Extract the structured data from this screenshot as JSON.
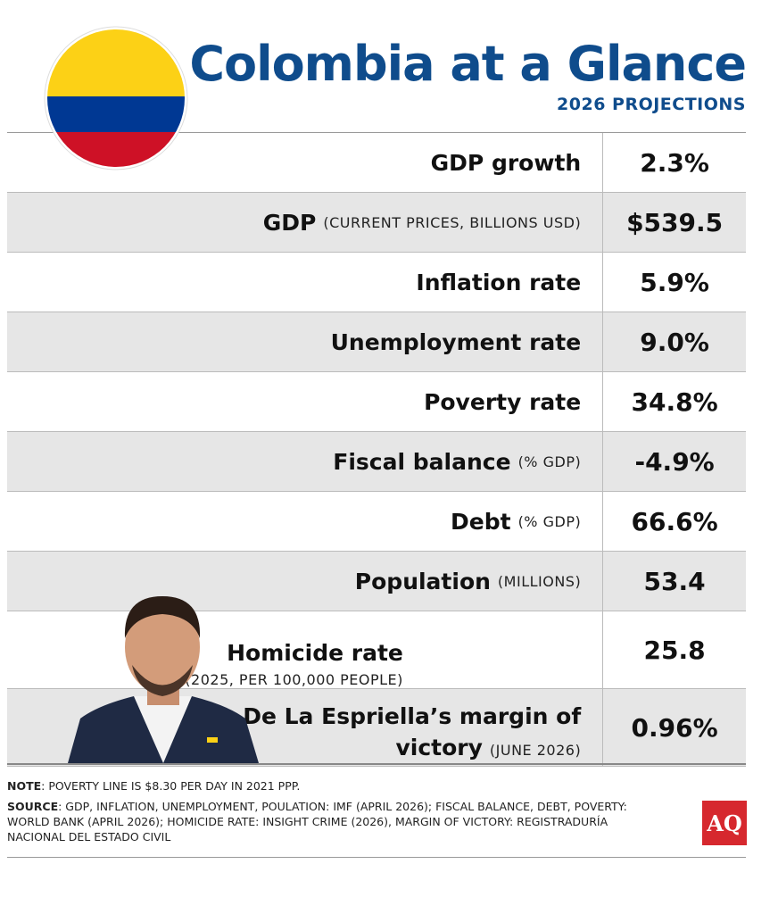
{
  "header": {
    "title": "Colombia at a Glance",
    "subtitle": "2026 PROJECTIONS"
  },
  "table": {
    "rows": [
      {
        "label": "GDP growth",
        "value": "2.3%"
      },
      {
        "label": "GDP",
        "qualifier": "(CURRENT PRICES, BILLIONS USD)",
        "value": "$539.5"
      },
      {
        "label": "Inflation rate",
        "value": "5.9%"
      },
      {
        "label": "Unemployment rate",
        "value": "9.0%"
      },
      {
        "label": "Poverty rate",
        "value": "34.8%"
      },
      {
        "label": "Fiscal balance",
        "qualifier": "(% GDP)",
        "value": "-4.9%"
      },
      {
        "label": "Debt",
        "qualifier": "(% GDP)",
        "value": "66.6%"
      },
      {
        "label": "Population",
        "qualifier": "(MILLIONS)",
        "value": "53.4"
      },
      {
        "label": "Homicide rate",
        "qualifier": "(2025, PER 100,000 PEOPLE)",
        "value": "25.8"
      },
      {
        "label": "Abelardo De La Espriella’s margin of victory",
        "qualifier": "(JUNE 2026)",
        "value": "0.96%"
      }
    ]
  },
  "footer": {
    "note_label": "NOTE",
    "note": ": POVERTY LINE IS $8.30 PER DAY IN 2021 PPP.",
    "source_label": "SOURCE",
    "source": ": GDP, INFLATION, UNEMPLOYMENT, POULATION: IMF (APRIL 2026); FISCAL BALANCE, DEBT, POVERTY: WORLD BANK (APRIL 2026); HOMICIDE RATE: INSIGHT CRIME (2026), MARGIN OF VICTORY: REGISTRADURÍA NACIONAL DEL ESTADO CIVIL",
    "logo": "AQ"
  }
}
